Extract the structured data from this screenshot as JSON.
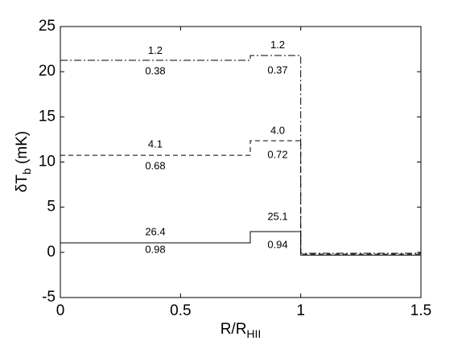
{
  "chart_data": {
    "type": "line",
    "xlabel": [
      "R/R",
      "HII"
    ],
    "ylabel": [
      "δT",
      "b",
      " (mK)"
    ],
    "xlim": [
      0,
      1.5
    ],
    "ylim": [
      -5,
      25
    ],
    "xticks": [
      0,
      0.5,
      1,
      1.5
    ],
    "yticks": [
      -5,
      0,
      5,
      10,
      15,
      20,
      25
    ],
    "series": [
      {
        "color": "#000000",
        "dash": "solid",
        "x": [
          0,
          0.79,
          0.79,
          1,
          1,
          1.5
        ],
        "values": [
          1.05,
          1.05,
          2.3,
          2.3,
          -0.3,
          -0.3
        ]
      },
      {
        "color": "#000000",
        "dash": "dashed",
        "x": [
          0,
          0.79,
          0.79,
          1,
          1,
          1.5
        ],
        "values": [
          10.75,
          10.75,
          12.36,
          12.36,
          -0.2,
          -0.2
        ]
      },
      {
        "color": "#000000",
        "dash": "dashdot",
        "x": [
          0,
          0.79,
          0.79,
          1,
          1,
          1.5
        ],
        "values": [
          21.26,
          21.26,
          21.8,
          21.8,
          -0.1,
          -0.1
        ]
      }
    ],
    "annotations": [
      {
        "text": "1.2",
        "x": 0.395,
        "y": 22.3
      },
      {
        "text": "0.38",
        "x": 0.395,
        "y": 20.0
      },
      {
        "text": "1.2",
        "x": 0.904,
        "y": 22.9
      },
      {
        "text": "0.37",
        "x": 0.904,
        "y": 20.1
      },
      {
        "text": "4.1",
        "x": 0.395,
        "y": 11.9
      },
      {
        "text": "0.68",
        "x": 0.395,
        "y": 9.5
      },
      {
        "text": "4.0",
        "x": 0.904,
        "y": 13.4
      },
      {
        "text": "0.72",
        "x": 0.904,
        "y": 10.75
      },
      {
        "text": "26.4",
        "x": 0.395,
        "y": 2.2
      },
      {
        "text": "0.98",
        "x": 0.395,
        "y": 0.25
      },
      {
        "text": "25.1",
        "x": 0.904,
        "y": 3.9
      },
      {
        "text": "0.94",
        "x": 0.904,
        "y": 0.8
      }
    ]
  }
}
